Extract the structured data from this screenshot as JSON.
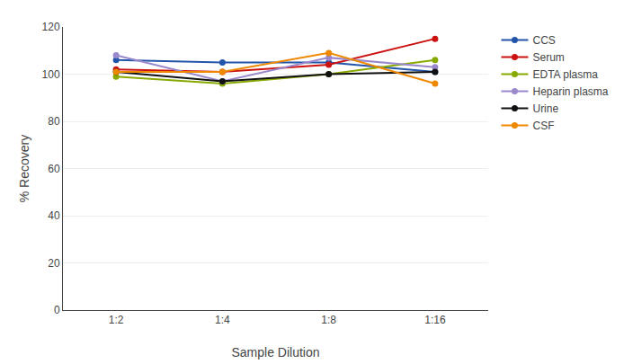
{
  "chart_data": {
    "type": "line",
    "xlabel": "Sample Dilution",
    "ylabel": "% Recovery",
    "categories": [
      "1:2",
      "1:4",
      "1:8",
      "1:16"
    ],
    "series": [
      {
        "name": "CCS",
        "color": "#2255aa",
        "values": [
          106,
          105,
          105,
          101
        ]
      },
      {
        "name": "Serum",
        "color": "#cc1111",
        "values": [
          102,
          101,
          104,
          115
        ]
      },
      {
        "name": "EDTA plasma",
        "color": "#88aa00",
        "values": [
          99,
          96,
          100,
          106
        ]
      },
      {
        "name": "Heparin plasma",
        "color": "#9988cc",
        "values": [
          108,
          97,
          107,
          103
        ]
      },
      {
        "name": "Urine",
        "color": "#111111",
        "values": [
          101,
          97,
          100,
          101
        ]
      },
      {
        "name": "CSF",
        "color": "#ee8800",
        "values": [
          101,
          101,
          109,
          96
        ]
      }
    ],
    "ylim": [
      0,
      120
    ],
    "yticks": [
      0,
      20,
      40,
      60,
      80,
      100,
      120
    ],
    "grid": true,
    "legend": "right",
    "marker": "circle"
  }
}
